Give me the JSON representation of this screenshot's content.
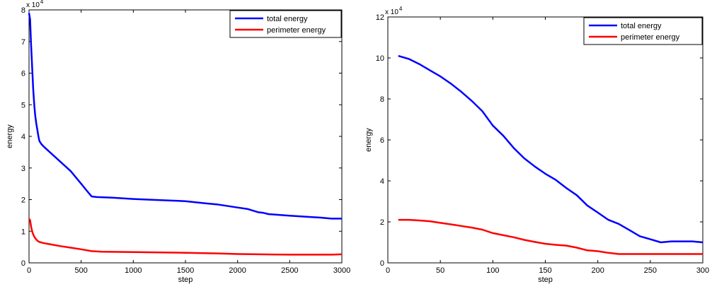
{
  "colors": {
    "total": "#0000ff",
    "perimeter": "#ff0000",
    "axis": "#000000",
    "background": "#ffffff"
  },
  "chart_data": [
    {
      "type": "line",
      "xlabel": "step",
      "ylabel": "energy",
      "multiplier_label": "x 10",
      "multiplier_exp": "4",
      "xlim": [
        0,
        3000
      ],
      "ylim": [
        0,
        80000
      ],
      "xticks": [
        0,
        500,
        1000,
        1500,
        2000,
        2500,
        3000
      ],
      "yticks": [
        0,
        10000,
        20000,
        30000,
        40000,
        50000,
        60000,
        70000,
        80000
      ],
      "xtick_labels": [
        "0",
        "500",
        "1000",
        "1500",
        "2000",
        "2500",
        "3000"
      ],
      "ytick_labels": [
        "0",
        "1",
        "2",
        "3",
        "4",
        "5",
        "6",
        "7",
        "8"
      ],
      "legend_position": "top-right",
      "series": [
        {
          "name": "total energy",
          "color_key": "total",
          "x": [
            0,
            10,
            20,
            30,
            40,
            50,
            60,
            70,
            80,
            90,
            100,
            120,
            150,
            200,
            250,
            300,
            400,
            500,
            550,
            600,
            650,
            800,
            1000,
            1200,
            1500,
            1700,
            1800,
            2000,
            2100,
            2200,
            2250,
            2300,
            2500,
            2700,
            2800,
            2900,
            3000
          ],
          "y": [
            79000,
            77000,
            69000,
            62000,
            55000,
            50000,
            46500,
            44000,
            42000,
            40000,
            38500,
            37500,
            36500,
            35000,
            33500,
            32000,
            29000,
            25000,
            23000,
            21000,
            20800,
            20600,
            20200,
            19900,
            19500,
            18800,
            18500,
            17500,
            17000,
            16000,
            15800,
            15400,
            14900,
            14500,
            14300,
            14000,
            14000
          ]
        },
        {
          "name": "perimeter energy",
          "color_key": "perimeter",
          "x": [
            0,
            10,
            20,
            30,
            40,
            50,
            60,
            80,
            100,
            150,
            200,
            300,
            400,
            500,
            600,
            700,
            1000,
            1500,
            1800,
            2000,
            2200,
            2500,
            2800,
            2900,
            3000
          ],
          "y": [
            14000,
            13500,
            11500,
            10000,
            9000,
            8300,
            7800,
            7000,
            6600,
            6200,
            5900,
            5300,
            4800,
            4300,
            3700,
            3500,
            3400,
            3200,
            3000,
            2800,
            2700,
            2600,
            2600,
            2600,
            2700
          ]
        }
      ]
    },
    {
      "type": "line",
      "xlabel": "step",
      "ylabel": "energy",
      "multiplier_label": "x 10",
      "multiplier_exp": "4",
      "xlim": [
        0,
        300
      ],
      "ylim": [
        0,
        120000
      ],
      "xticks": [
        0,
        50,
        100,
        150,
        200,
        250,
        300
      ],
      "yticks": [
        0,
        20000,
        40000,
        60000,
        80000,
        100000,
        120000
      ],
      "xtick_labels": [
        "0",
        "50",
        "100",
        "150",
        "200",
        "250",
        "300"
      ],
      "ytick_labels": [
        "0",
        "2",
        "4",
        "6",
        "8",
        "10",
        "12"
      ],
      "legend_position": "top-right",
      "series": [
        {
          "name": "total energy",
          "color_key": "total",
          "x": [
            10,
            20,
            30,
            40,
            50,
            60,
            70,
            80,
            90,
            100,
            110,
            120,
            130,
            140,
            150,
            160,
            170,
            180,
            190,
            200,
            210,
            220,
            230,
            240,
            250,
            260,
            270,
            280,
            290,
            300
          ],
          "y": [
            101000,
            99500,
            97000,
            94000,
            91000,
            87500,
            83500,
            79000,
            74000,
            67000,
            62000,
            56000,
            51000,
            47000,
            43500,
            40500,
            36500,
            33000,
            28000,
            24500,
            21000,
            19000,
            16000,
            13000,
            11500,
            10000,
            10500,
            10500,
            10500,
            10000
          ]
        },
        {
          "name": "perimeter energy",
          "color_key": "perimeter",
          "x": [
            10,
            20,
            30,
            40,
            50,
            60,
            70,
            80,
            90,
            100,
            110,
            120,
            130,
            140,
            150,
            160,
            170,
            180,
            190,
            200,
            210,
            220,
            230,
            240,
            250,
            260,
            270,
            280,
            290,
            300
          ],
          "y": [
            21000,
            21000,
            20700,
            20300,
            19500,
            18800,
            18000,
            17200,
            16200,
            14500,
            13500,
            12500,
            11200,
            10200,
            9300,
            8800,
            8400,
            7400,
            6100,
            5700,
            4900,
            4300,
            4300,
            4300,
            4300,
            4300,
            4300,
            4300,
            4300,
            4300
          ]
        }
      ]
    }
  ]
}
